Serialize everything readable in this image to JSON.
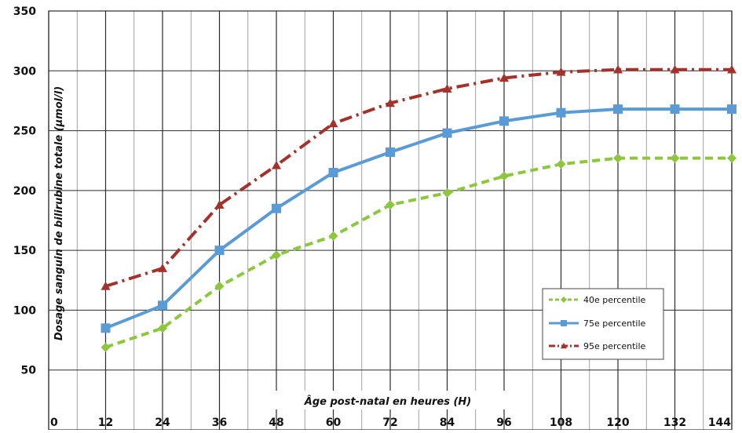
{
  "chart_data": {
    "type": "line",
    "xlabel": "Âge post-natal en heures (H)",
    "ylabel": "Dosage sanguin de bilirubine totale (µmol/l)",
    "x_ticks": [
      "0",
      "12",
      "24",
      "36",
      "48",
      "60",
      "72",
      "84",
      "96",
      "108",
      "120",
      "132",
      "144"
    ],
    "y_ticks": [
      "50",
      "100",
      "150",
      "200",
      "250",
      "300",
      "350"
    ],
    "xlim": [
      0,
      144
    ],
    "ylim": [
      0,
      350
    ],
    "grid": true,
    "legend_position": "bottom-right",
    "x": [
      12,
      24,
      36,
      48,
      60,
      72,
      84,
      96,
      108,
      120,
      132,
      144
    ],
    "series": [
      {
        "name": "40e percentile",
        "color": "#8dc63f",
        "line_style": "dashed",
        "marker": "diamond",
        "values": [
          69,
          85,
          120,
          146,
          162,
          188,
          198,
          212,
          222,
          227,
          227,
          227
        ]
      },
      {
        "name": "75e percentile",
        "color": "#5b9bd5",
        "line_style": "solid",
        "marker": "square",
        "values": [
          85,
          104,
          150,
          185,
          215,
          232,
          248,
          258,
          265,
          268,
          268,
          268
        ]
      },
      {
        "name": "95e percentile",
        "color": "#a3322d",
        "line_style": "dash-dot",
        "marker": "triangle",
        "values": [
          120,
          135,
          188,
          221,
          256,
          273,
          285,
          294,
          299,
          301,
          301,
          301
        ]
      }
    ]
  }
}
